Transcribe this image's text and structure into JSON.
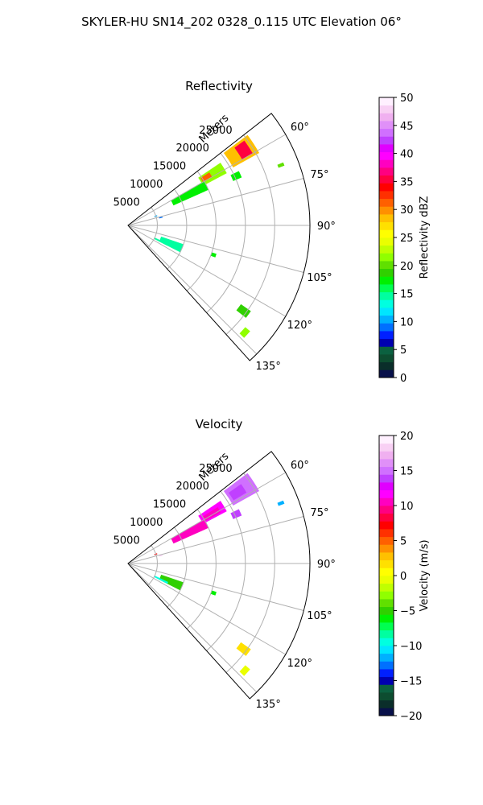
{
  "figure": {
    "suptitle": "SKYLER-HU  SN14_202  0328_0.115 UTC Elevation 06°"
  },
  "chart_data": [
    {
      "type": "heatmap",
      "title": "Reflectivity",
      "radial_label": "Meters",
      "radial_ticks": [
        "5000",
        "10000",
        "15000",
        "20000",
        "25000"
      ],
      "radial_tick_values": [
        5000,
        10000,
        15000,
        20000,
        25000
      ],
      "rlim": [
        0,
        31000
      ],
      "azimuth_ticks": [
        "60°",
        "75°",
        "90°",
        "105°",
        "120°",
        "135°"
      ],
      "azimuth_tick_values": [
        60,
        75,
        90,
        105,
        120,
        135
      ],
      "azimuth_range": [
        52,
        138
      ],
      "grid": true,
      "colorbar": {
        "label": "Reflectivity dBZ",
        "ticks": [
          "0",
          "5",
          "10",
          "15",
          "20",
          "25",
          "30",
          "35",
          "40",
          "45",
          "50"
        ],
        "range": [
          0,
          50
        ],
        "colors": [
          "#08104a",
          "#0a2e2a",
          "#0d4d30",
          "#0b6140",
          "#0000b0",
          "#0020ff",
          "#0070ff",
          "#00b0ff",
          "#00e5ff",
          "#00ffe0",
          "#00ffa0",
          "#00ff50",
          "#00f000",
          "#30d000",
          "#60e000",
          "#90ff00",
          "#c0ff00",
          "#eaff00",
          "#ffff00",
          "#ffe000",
          "#ffc000",
          "#ff9000",
          "#ff6000",
          "#ff3000",
          "#ff0000",
          "#ff0040",
          "#ff0080",
          "#ff00c0",
          "#ff00ff",
          "#e000ff",
          "#c040ff",
          "#d070ff",
          "#e090f8",
          "#f0b0f0",
          "#f8d0f4",
          "#fff0ff"
        ]
      },
      "echo_regions": [
        {
          "az": [
            53,
            61
          ],
          "range": [
            20500,
            25500
          ],
          "value": 28
        },
        {
          "az": [
            54,
            60
          ],
          "range": [
            22500,
            24500
          ],
          "value": 36
        },
        {
          "az": [
            56,
            62
          ],
          "range": [
            14500,
            19000
          ],
          "value": 22
        },
        {
          "az": [
            57,
            60
          ],
          "range": [
            14800,
            16500
          ],
          "value": 31
        },
        {
          "az": [
            60,
            66
          ],
          "range": [
            8500,
            15000
          ],
          "value": 18
        },
        {
          "az": [
            64,
            67
          ],
          "range": [
            19500,
            21000
          ],
          "value": 18
        },
        {
          "az": [
            71,
            72
          ],
          "range": [
            4800,
            5200
          ],
          "value": 10
        },
        {
          "az": [
            76,
            77
          ],
          "range": [
            5500,
            6000
          ],
          "value": 9
        },
        {
          "az": [
            109,
            117
          ],
          "range": [
            6000,
            10000
          ],
          "value": 14
        },
        {
          "az": [
            115,
            117
          ],
          "range": [
            5000,
            7500
          ],
          "value": 14
        },
        {
          "az": [
            108,
            110
          ],
          "range": [
            15000,
            15800
          ],
          "value": 17
        },
        {
          "az": [
            125,
            128
          ],
          "range": [
            23500,
            25500
          ],
          "value": 19
        },
        {
          "az": [
            131,
            134
          ],
          "range": [
            26500,
            27500
          ],
          "value": 22
        },
        {
          "az": [
            68,
            69
          ],
          "range": [
            27500,
            28500
          ],
          "value": 20
        }
      ]
    },
    {
      "type": "heatmap",
      "title": "Velocity",
      "radial_label": "Meters",
      "radial_ticks": [
        "5000",
        "10000",
        "15000",
        "20000",
        "25000"
      ],
      "radial_tick_values": [
        5000,
        10000,
        15000,
        20000,
        25000
      ],
      "rlim": [
        0,
        31000
      ],
      "azimuth_ticks": [
        "60°",
        "75°",
        "90°",
        "105°",
        "120°",
        "135°"
      ],
      "azimuth_tick_values": [
        60,
        75,
        90,
        105,
        120,
        135
      ],
      "azimuth_range": [
        52,
        138
      ],
      "grid": true,
      "colorbar": {
        "label": "Velocity (m/s)",
        "ticks": [
          "−20",
          "−15",
          "−10",
          "−5",
          "0",
          "5",
          "10",
          "15",
          "20"
        ],
        "range": [
          -20,
          20
        ],
        "colors": [
          "#08104a",
          "#0a2e2a",
          "#0d4d30",
          "#0b6140",
          "#0000b0",
          "#0020ff",
          "#0070ff",
          "#00b0ff",
          "#00e5ff",
          "#00ffe0",
          "#00ffa0",
          "#00ff50",
          "#00f000",
          "#30d000",
          "#60e000",
          "#90ff00",
          "#c0ff00",
          "#eaff00",
          "#ffff00",
          "#ffe000",
          "#ffc000",
          "#ff9000",
          "#ff6000",
          "#ff3000",
          "#ff0000",
          "#ff0040",
          "#ff0080",
          "#ff00c0",
          "#ff00ff",
          "#e000ff",
          "#c040ff",
          "#d070ff",
          "#e090f8",
          "#f0b0f0",
          "#f8d0f4",
          "#fff0ff"
        ]
      },
      "echo_regions": [
        {
          "az": [
            53,
            61
          ],
          "range": [
            20500,
            25500
          ],
          "value": 15
        },
        {
          "az": [
            55,
            59
          ],
          "range": [
            21000,
            23500
          ],
          "value": 14
        },
        {
          "az": [
            56,
            62
          ],
          "range": [
            14500,
            19000
          ],
          "value": 12
        },
        {
          "az": [
            58,
            61
          ],
          "range": [
            15000,
            18000
          ],
          "value": 11
        },
        {
          "az": [
            60,
            66
          ],
          "range": [
            8500,
            15000
          ],
          "value": 10
        },
        {
          "az": [
            61,
            64
          ],
          "range": [
            10000,
            14000
          ],
          "value": 10
        },
        {
          "az": [
            64,
            67
          ],
          "range": [
            19500,
            21000
          ],
          "value": 14
        },
        {
          "az": [
            71,
            72
          ],
          "range": [
            4800,
            5200
          ],
          "value": 7
        },
        {
          "az": [
            76,
            77
          ],
          "range": [
            5500,
            6000
          ],
          "value": 18
        },
        {
          "az": [
            109,
            117
          ],
          "range": [
            6000,
            10000
          ],
          "value": -5
        },
        {
          "az": [
            115,
            117
          ],
          "range": [
            5000,
            7500
          ],
          "value": -10
        },
        {
          "az": [
            108,
            110
          ],
          "range": [
            15000,
            15800
          ],
          "value": -6
        },
        {
          "az": [
            125,
            128
          ],
          "range": [
            23500,
            25500
          ],
          "value": 2
        },
        {
          "az": [
            131,
            134
          ],
          "range": [
            26500,
            27500
          ],
          "value": -1
        },
        {
          "az": [
            68,
            69
          ],
          "range": [
            27500,
            28500
          ],
          "value": -12
        }
      ]
    }
  ]
}
